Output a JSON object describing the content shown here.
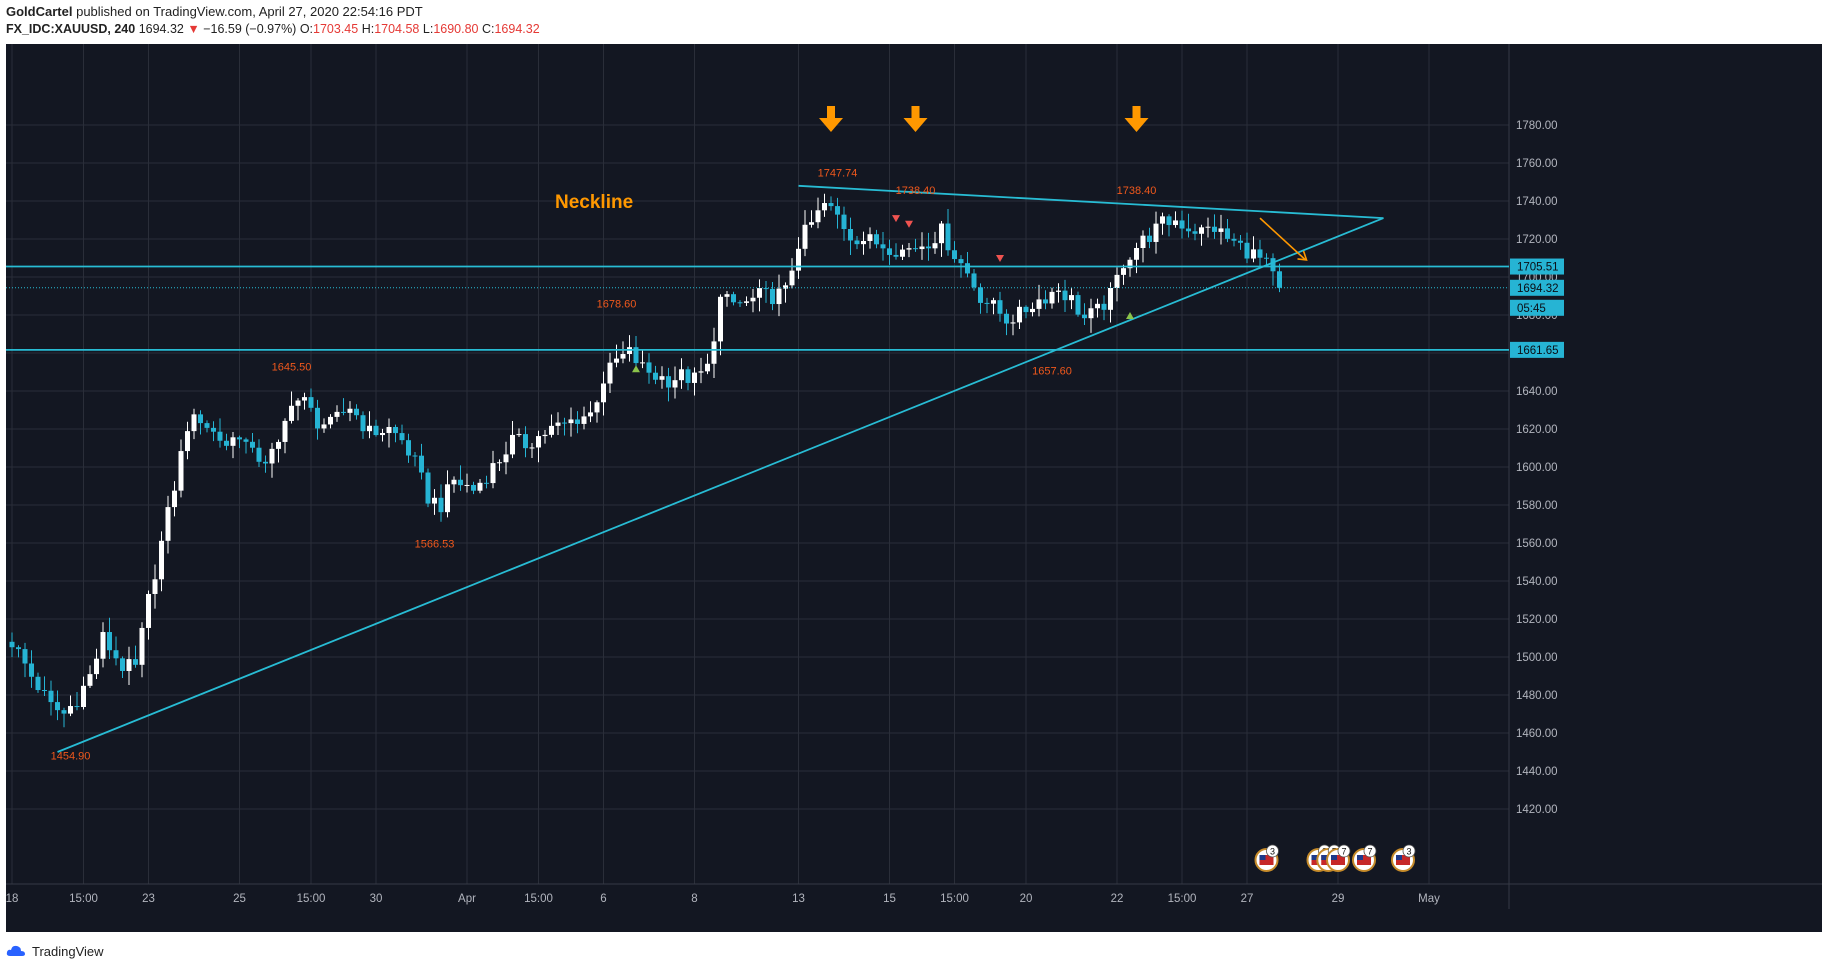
{
  "header": {
    "author": "GoldCartel",
    "published_text": "published on TradingView.com, April 27, 2020 22:54:16 PDT",
    "symbol": "FX_IDC:XAUUSD, 240",
    "last": "1694.32",
    "change": "−16.59 (−0.97%)",
    "open_label": "O:",
    "open": "1703.45",
    "high_label": "H:",
    "high": "1704.58",
    "low_label": "L:",
    "low": "1690.80",
    "close_label": "C:",
    "close": "1694.32"
  },
  "footer": {
    "brand": "TradingView"
  },
  "colors": {
    "background": "#131722",
    "grid": "#2a2e39",
    "up": "#ffffff",
    "down": "#26b4d4",
    "line": "#28bcd4",
    "label": "#f0581c",
    "accent": "#ff9800",
    "text": "#b2b5be",
    "triangle_up": "#8bc34a",
    "triangle_down": "#ef5350"
  },
  "chart_data": {
    "type": "candlestick",
    "symbol": "FX_IDC:XAUUSD",
    "interval": "240",
    "ylim": [
      1410,
      1792
    ],
    "y_ticks": [
      1420,
      1440,
      1460,
      1480,
      1500,
      1520,
      1540,
      1560,
      1580,
      1600,
      1620,
      1640,
      1660,
      1680,
      1700,
      1720,
      1740,
      1760,
      1780
    ],
    "x_ticks": [
      {
        "label": "18",
        "t": 0
      },
      {
        "label": "15:00",
        "t": 11
      },
      {
        "label": "23",
        "t": 21
      },
      {
        "label": "25",
        "t": 35
      },
      {
        "label": "15:00",
        "t": 46
      },
      {
        "label": "30",
        "t": 56
      },
      {
        "label": "Apr",
        "t": 70
      },
      {
        "label": "15:00",
        "t": 81
      },
      {
        "label": "6",
        "t": 91
      },
      {
        "label": "8",
        "t": 105
      },
      {
        "label": "13",
        "t": 121
      },
      {
        "label": "15",
        "t": 135
      },
      {
        "label": "15:00",
        "t": 145
      },
      {
        "label": "20",
        "t": 156
      },
      {
        "label": "22",
        "t": 170
      },
      {
        "label": "15:00",
        "t": 180
      },
      {
        "label": "27",
        "t": 190
      },
      {
        "label": "29",
        "t": 204
      },
      {
        "label": "May",
        "t": 218
      }
    ],
    "anchors": [
      [
        0,
        1508
      ],
      [
        3,
        1490
      ],
      [
        6,
        1474
      ],
      [
        8,
        1470
      ],
      [
        10,
        1478
      ],
      [
        12,
        1490
      ],
      [
        14,
        1510
      ],
      [
        17,
        1495
      ],
      [
        19,
        1494
      ],
      [
        21,
        1530
      ],
      [
        23,
        1560
      ],
      [
        25,
        1590
      ],
      [
        27,
        1622
      ],
      [
        29,
        1626
      ],
      [
        31,
        1618
      ],
      [
        33,
        1612
      ],
      [
        35,
        1618
      ],
      [
        37,
        1606
      ],
      [
        39,
        1604
      ],
      [
        41,
        1610
      ],
      [
        43,
        1636
      ],
      [
        45,
        1634
      ],
      [
        47,
        1624
      ],
      [
        49,
        1622
      ],
      [
        52,
        1632
      ],
      [
        55,
        1618
      ],
      [
        58,
        1620
      ],
      [
        60,
        1614
      ],
      [
        62,
        1602
      ],
      [
        64,
        1584
      ],
      [
        66,
        1580
      ],
      [
        68,
        1593
      ],
      [
        71,
        1588
      ],
      [
        73,
        1596
      ],
      [
        75,
        1604
      ],
      [
        77,
        1614
      ],
      [
        79,
        1612
      ],
      [
        81,
        1616
      ],
      [
        83,
        1620
      ],
      [
        85,
        1622
      ],
      [
        87,
        1626
      ],
      [
        89,
        1628
      ],
      [
        91,
        1646
      ],
      [
        93,
        1656
      ],
      [
        95,
        1660
      ],
      [
        97,
        1652
      ],
      [
        99,
        1648
      ],
      [
        101,
        1646
      ],
      [
        103,
        1648
      ],
      [
        105,
        1646
      ],
      [
        107,
        1652
      ],
      [
        109,
        1688
      ],
      [
        111,
        1686
      ],
      [
        113,
        1686
      ],
      [
        115,
        1690
      ],
      [
        117,
        1690
      ],
      [
        119,
        1692
      ],
      [
        121,
        1718
      ],
      [
        123,
        1728
      ],
      [
        125,
        1738
      ],
      [
        127,
        1732
      ],
      [
        129,
        1722
      ],
      [
        131,
        1720
      ],
      [
        133,
        1718
      ],
      [
        135,
        1716
      ],
      [
        137,
        1714
      ],
      [
        139,
        1716
      ],
      [
        141,
        1719
      ],
      [
        143,
        1724
      ],
      [
        145,
        1712
      ],
      [
        147,
        1702
      ],
      [
        149,
        1690
      ],
      [
        151,
        1684
      ],
      [
        153,
        1678
      ],
      [
        155,
        1680
      ],
      [
        157,
        1686
      ],
      [
        159,
        1690
      ],
      [
        161,
        1694
      ],
      [
        163,
        1688
      ],
      [
        165,
        1678
      ],
      [
        167,
        1682
      ],
      [
        169,
        1690
      ],
      [
        171,
        1708
      ],
      [
        173,
        1716
      ],
      [
        175,
        1722
      ],
      [
        177,
        1728
      ],
      [
        179,
        1730
      ],
      [
        181,
        1726
      ],
      [
        183,
        1724
      ],
      [
        185,
        1726
      ],
      [
        187,
        1720
      ],
      [
        189,
        1716
      ],
      [
        191,
        1712
      ],
      [
        193,
        1706
      ],
      [
        195,
        1694
      ]
    ],
    "last_price": 1694.32,
    "horizontal_levels": [
      1705.51,
      1661.65
    ],
    "price_labels": [
      "1705.51",
      "1694.32",
      "05:45",
      "1661.65"
    ],
    "annotations": [
      {
        "text": "1454.90",
        "t": 9,
        "price": 1454.9
      },
      {
        "text": "1645.50",
        "t": 43,
        "price": 1645.5
      },
      {
        "text": "1566.53",
        "t": 65,
        "price": 1566.53
      },
      {
        "text": "1678.60",
        "t": 93,
        "price": 1678.6
      },
      {
        "text": "1657.60",
        "t": 160,
        "price": 1657.6
      },
      {
        "text": "1747.74",
        "t": 127,
        "price": 1747.74
      },
      {
        "text": "1738.40",
        "t": 139,
        "price": 1738.4
      },
      {
        "text": "1738.40",
        "t": 173,
        "price": 1738.4
      }
    ],
    "neckline_label": "Neckline",
    "trendlines": [
      {
        "from": [
          7,
          1450
        ],
        "to": [
          211,
          1731
        ]
      },
      {
        "from": [
          121,
          1748
        ],
        "to": [
          211,
          1731
        ]
      }
    ],
    "peak_arrows": [
      126,
      139,
      173
    ],
    "event_badges": [
      {
        "count": "3",
        "t": 193
      },
      {
        "count": "2",
        "t": 201
      },
      {
        "count": "5",
        "t": 202.5
      },
      {
        "count": "7",
        "t": 204
      },
      {
        "count": "7",
        "t": 208
      },
      {
        "count": "3",
        "t": 214
      }
    ]
  }
}
